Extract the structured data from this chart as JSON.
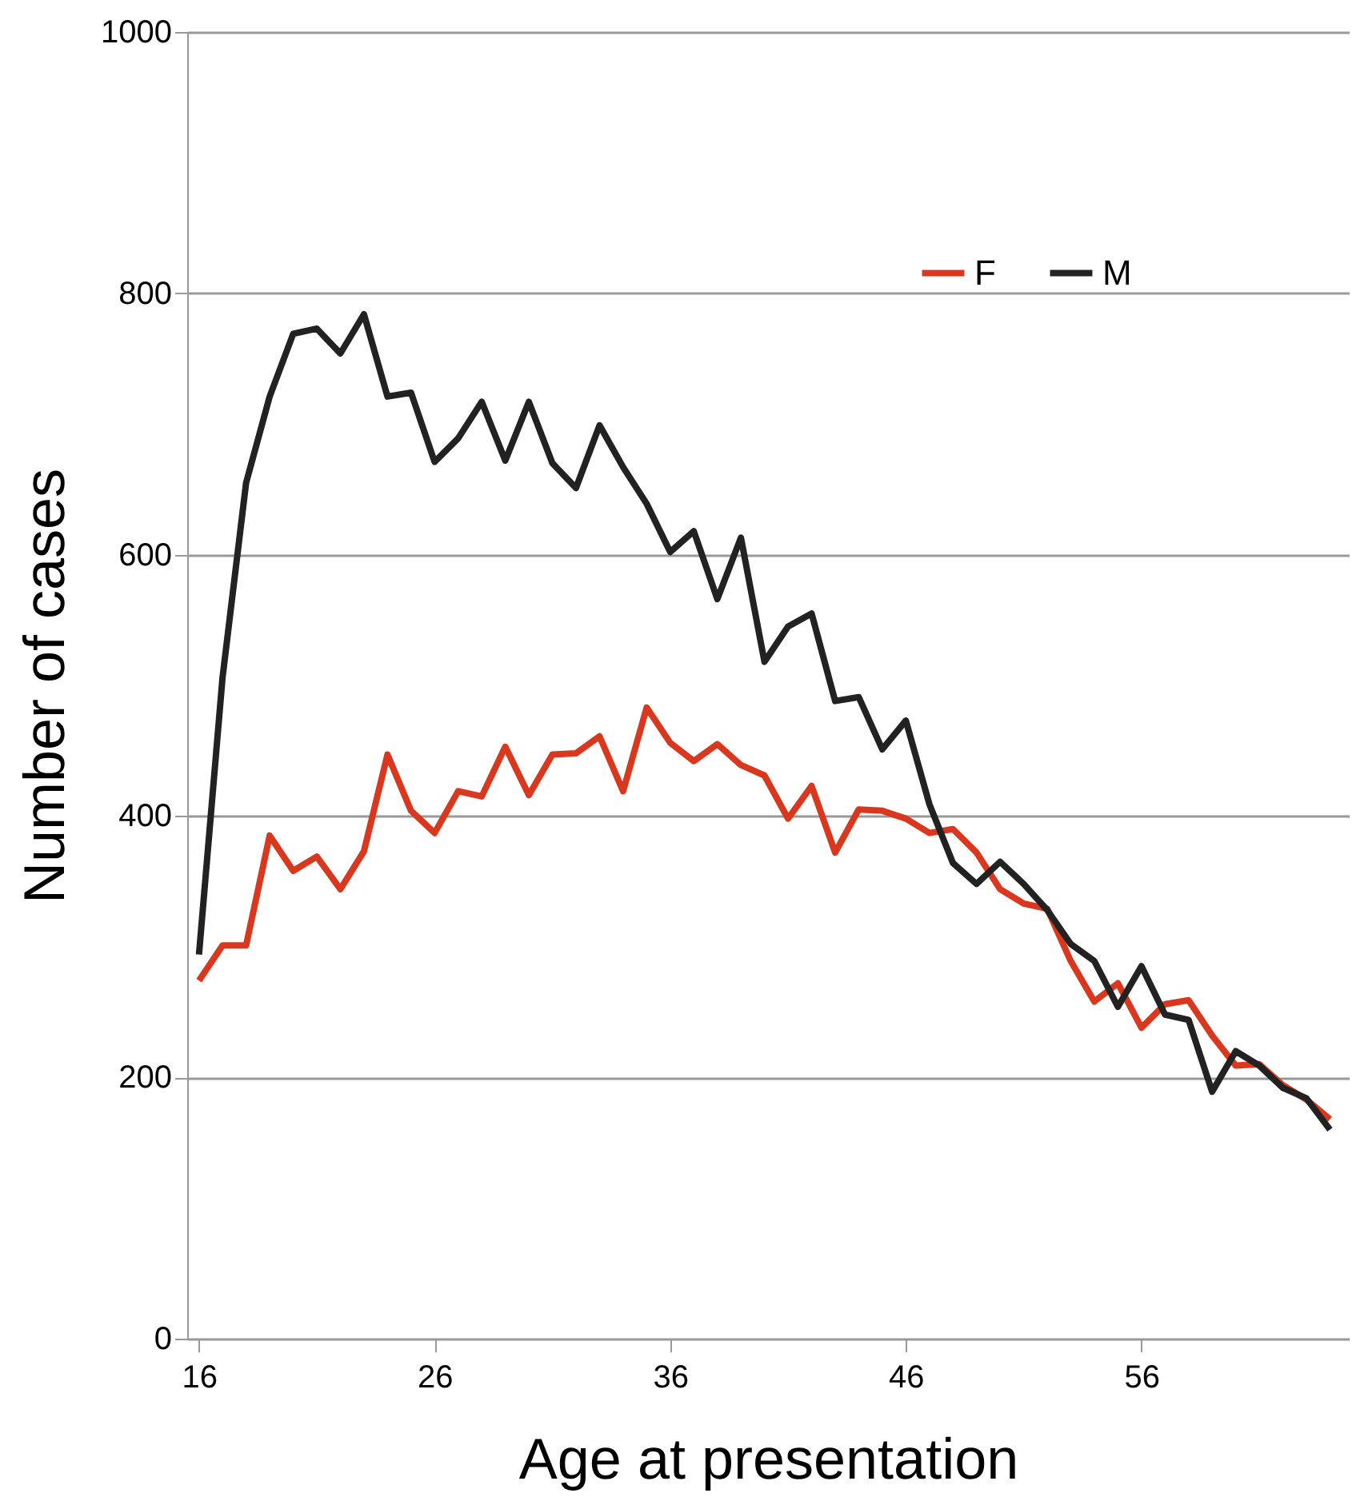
{
  "chart_data": {
    "type": "line",
    "xlabel": "Age at presentation",
    "ylabel": "Number of cases",
    "x": [
      16,
      17,
      18,
      19,
      20,
      21,
      22,
      23,
      24,
      25,
      26,
      27,
      28,
      29,
      30,
      31,
      32,
      33,
      34,
      35,
      36,
      37,
      38,
      39,
      40,
      41,
      42,
      43,
      44,
      45,
      46,
      47,
      48,
      49,
      50,
      51,
      52,
      53,
      54,
      55,
      56,
      57,
      58,
      59,
      60,
      61,
      62,
      63,
      64
    ],
    "series": [
      {
        "name": "F",
        "color": "#d9381e",
        "values": [
          274,
          301,
          301,
          385,
          358,
          369,
          344,
          373,
          447,
          404,
          387,
          419,
          415,
          453,
          416,
          447,
          448,
          461,
          419,
          483,
          456,
          442,
          455,
          439,
          431,
          398,
          423,
          372,
          405,
          404,
          398,
          387,
          390,
          372,
          344,
          333,
          329,
          289,
          258,
          272,
          238,
          256,
          259,
          232,
          209,
          210,
          194,
          183,
          168
        ]
      },
      {
        "name": "M",
        "color": "#222222",
        "values": [
          294,
          506,
          655,
          721,
          769,
          773,
          754,
          784,
          721,
          724,
          671,
          689,
          717,
          672,
          717,
          670,
          651,
          699,
          667,
          639,
          602,
          618,
          566,
          613,
          518,
          545,
          555,
          488,
          491,
          451,
          473,
          409,
          364,
          348,
          365,
          348,
          328,
          302,
          289,
          254,
          285,
          248,
          244,
          189,
          220,
          209,
          192,
          184,
          160
        ]
      }
    ],
    "xlim": [
      15.5,
      64.8
    ],
    "xticks": [
      16,
      26,
      36,
      46,
      56
    ],
    "ylim": [
      0,
      1000
    ],
    "yticks": [
      0,
      200,
      400,
      600,
      800,
      1000
    ],
    "grid": "y",
    "legend": "top right",
    "marker": "none",
    "line_style": "solid"
  }
}
